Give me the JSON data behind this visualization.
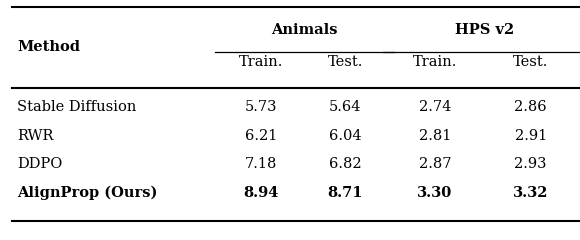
{
  "sub_headers": [
    "Train.",
    "Test.",
    "Train.",
    "Test."
  ],
  "rows": [
    {
      "method": "Stable Diffusion",
      "values": [
        "5.73",
        "5.64",
        "2.74",
        "2.86"
      ],
      "bold": false
    },
    {
      "method": "RWR",
      "values": [
        "6.21",
        "6.04",
        "2.81",
        "2.91"
      ],
      "bold": false
    },
    {
      "method": "DDPO",
      "values": [
        "7.18",
        "6.82",
        "2.87",
        "2.93"
      ],
      "bold": false
    },
    {
      "method": "AlignProp (Ours)",
      "values": [
        "8.94",
        "8.71",
        "3.30",
        "3.32"
      ],
      "bold": true
    }
  ],
  "background_color": "#ffffff",
  "line_color": "#000000",
  "text_color": "#000000",
  "font_size": 10.5,
  "figsize": [
    5.8,
    2.4
  ],
  "dpi": 100
}
